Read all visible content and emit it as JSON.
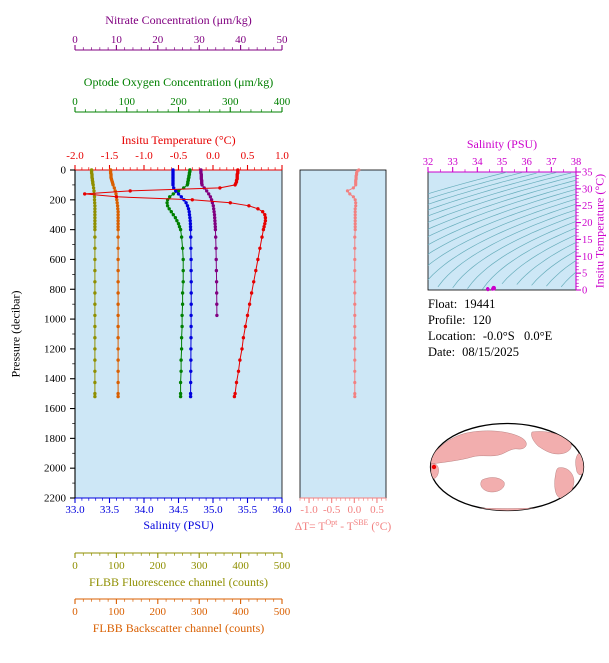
{
  "colors": {
    "plot_bg": "#cde7f6",
    "contour": "#68aebc",
    "map_land": "#f2aeae",
    "map_outline": "#000000",
    "float_marker": "#ee0000"
  },
  "axes": {
    "nitrate": {
      "title": "Nitrate Concentration (μm/kg)",
      "color": "#800080",
      "min": 0,
      "max": 50,
      "tick_labels": [
        "0",
        "10",
        "20",
        "30",
        "40",
        "50"
      ]
    },
    "oxygen": {
      "title": "Optode Oxygen Concentration (μm/kg)",
      "color": "#008000",
      "min": 0,
      "max": 400,
      "tick_labels": [
        "0",
        "100",
        "200",
        "300",
        "400"
      ]
    },
    "temperature": {
      "title": "Insitu Temperature (°C)",
      "color": "#e60000",
      "min": -2,
      "max": 1,
      "tick_labels": [
        "-2.0",
        "-1.5",
        "-1.0",
        "-0.5",
        "0.0",
        "0.5",
        "1.0"
      ]
    },
    "pressure": {
      "title": "Pressure (decibar)",
      "color": "#000000",
      "min": 0,
      "max": 2200,
      "tick_labels": [
        "0",
        "200",
        "400",
        "600",
        "800",
        "1000",
        "1200",
        "1400",
        "1600",
        "1800",
        "2000",
        "2200"
      ]
    },
    "salinity": {
      "title": "Salinity (PSU)",
      "color": "#0000dd",
      "min": 33,
      "max": 36,
      "tick_labels": [
        "33.0",
        "33.5",
        "34.0",
        "34.5",
        "35.0",
        "35.5",
        "36.0"
      ]
    },
    "fluorescence": {
      "title": "FLBB Fluorescence channel (counts)",
      "color": "#8f8f00",
      "min": 0,
      "max": 500,
      "tick_labels": [
        "0",
        "100",
        "200",
        "300",
        "400",
        "500"
      ]
    },
    "backscatter": {
      "title": "FLBB Backscatter channel (counts)",
      "color": "#d95f00",
      "min": 0,
      "max": 500,
      "tick_labels": [
        "0",
        "100",
        "200",
        "300",
        "400",
        "500"
      ]
    },
    "delta": {
      "color": "#f28080",
      "min": -1.2,
      "max": 0.7,
      "tick_labels": [
        "-1.0",
        "-0.5",
        "0.0",
        "0.5"
      ],
      "label_parts": {
        "p1": "ΔT= T",
        "sup1": "Opt",
        "p2": " - T",
        "sup2": "SBE",
        "p3": " (°C)"
      }
    },
    "ts_salinity": {
      "title": "Salinity (PSU)",
      "color": "#cc00cc",
      "min": 32,
      "max": 38,
      "tick_labels": [
        "32",
        "33",
        "34",
        "35",
        "36",
        "37",
        "38"
      ]
    },
    "ts_temperature": {
      "title": "Insitu Temperature (°C)",
      "color": "#cc00cc",
      "min": 0,
      "max": 35,
      "tick_labels": [
        "0",
        "5",
        "10",
        "15",
        "20",
        "25",
        "30",
        "35"
      ]
    }
  },
  "info": {
    "rows": [
      {
        "label": "Float:",
        "value": "19441"
      },
      {
        "label": "Profile:",
        "value": "120"
      },
      {
        "label": "Location:",
        "value": "-0.0°S   0.0°E"
      },
      {
        "label": "Date:",
        "value": "08/15/2025"
      }
    ]
  },
  "chart_data": [
    {
      "type": "line",
      "title": "Float vertical profiles vs pressure",
      "ylabel": "Pressure (decibar)",
      "ylim": [
        0,
        2200
      ],
      "pressure_db": [
        0,
        10,
        20,
        30,
        40,
        50,
        60,
        70,
        80,
        90,
        100,
        120,
        140,
        160,
        180,
        200,
        220,
        240,
        260,
        280,
        300,
        320,
        340,
        360,
        380,
        400,
        450,
        525,
        600,
        675,
        750,
        825,
        900,
        975,
        1050,
        1125,
        1200,
        1275,
        1350,
        1425,
        1500,
        1520
      ],
      "series": [
        {
          "name": "FLBB Fluorescence channel (counts)",
          "color": "#8f8f00",
          "range": [
            0,
            500
          ],
          "values": [
            40,
            40,
            40,
            41,
            41,
            41,
            42,
            42,
            43,
            43,
            44,
            45,
            46,
            46,
            47,
            47,
            47.5,
            48,
            48,
            48,
            48,
            48,
            48,
            48,
            48,
            48,
            48,
            48,
            48,
            48,
            48,
            48,
            48,
            48,
            48,
            48,
            48,
            48,
            48,
            48,
            48,
            48
          ]
        },
        {
          "name": "FLBB Backscatter channel (counts)",
          "color": "#d95f00",
          "range": [
            0,
            500
          ],
          "values": [
            86,
            86,
            86,
            87,
            87,
            87,
            88,
            89,
            90,
            91,
            92,
            95,
            97,
            99,
            100,
            101,
            102,
            103,
            103.5,
            104,
            104,
            104,
            104,
            104,
            104,
            104,
            104,
            104,
            104,
            104,
            104,
            104,
            104,
            104,
            104,
            104,
            104,
            104,
            104,
            104,
            104,
            104
          ]
        },
        {
          "name": "Nitrate Concentration (μm/kg)",
          "color": "#800080",
          "range": [
            0,
            50
          ],
          "values": [
            30.4,
            30.4,
            30.4,
            30.5,
            30.5,
            30.5,
            30.5,
            30.6,
            30.6,
            30.6,
            30.7,
            31.2,
            31.8,
            32.3,
            32.7,
            33.0,
            33.2,
            33.4,
            33.5,
            33.6,
            33.7,
            33.75,
            33.8,
            33.85,
            33.9,
            33.92,
            33.98,
            34.05,
            34.1,
            34.15,
            34.2,
            34.22,
            34.25,
            34.27,
            null,
            null,
            null,
            null,
            null,
            null,
            null,
            null
          ]
        },
        {
          "name": "Optode Oxygen Concentration (μm/kg)",
          "color": "#008000",
          "range": [
            0,
            400
          ],
          "values": [
            222,
            222,
            221,
            221,
            220,
            220,
            219,
            219,
            218,
            218,
            217,
            210,
            200,
            190,
            183,
            179,
            178,
            179,
            182,
            186,
            190,
            194,
            197,
            200,
            202,
            204,
            206,
            208,
            209,
            209,
            209,
            208,
            208,
            207,
            207,
            206,
            206,
            205,
            205,
            204,
            204,
            204
          ]
        },
        {
          "name": "Salinity (PSU)",
          "color": "#0000dd",
          "range": [
            33,
            36
          ],
          "values": [
            34.42,
            34.42,
            34.42,
            34.42,
            34.42,
            34.42,
            34.42,
            34.42,
            34.42,
            34.42,
            34.42,
            34.43,
            34.46,
            34.5,
            34.54,
            34.58,
            34.61,
            34.63,
            34.645,
            34.655,
            34.66,
            34.665,
            34.67,
            34.672,
            34.674,
            34.675,
            34.678,
            34.68,
            34.682,
            34.683,
            34.684,
            34.684,
            34.684,
            34.683,
            34.682,
            34.681,
            34.68,
            34.679,
            34.678,
            34.677,
            34.676,
            34.676
          ]
        },
        {
          "name": "Insitu Temperature (°C)",
          "color": "#e60000",
          "range": [
            -2,
            1
          ],
          "values": [
            0.36,
            0.36,
            0.36,
            0.35,
            0.35,
            0.35,
            0.35,
            0.34,
            0.34,
            0.33,
            0.32,
            0.1,
            -1.2,
            -1.86,
            -1.4,
            -0.3,
            0.25,
            0.52,
            0.65,
            0.72,
            0.75,
            0.76,
            0.76,
            0.75,
            0.74,
            0.73,
            0.71,
            0.68,
            0.65,
            0.62,
            0.59,
            0.56,
            0.53,
            0.5,
            0.47,
            0.44,
            0.42,
            0.39,
            0.37,
            0.34,
            0.32,
            0.31
          ]
        }
      ]
    },
    {
      "type": "line",
      "title": "ΔT= TOpt - TSBE (°C) vs pressure",
      "xlim": [
        -1.2,
        0.7
      ],
      "color": "#f28080",
      "pressure_db": [
        0,
        10,
        20,
        30,
        40,
        50,
        60,
        70,
        80,
        90,
        100,
        120,
        140,
        160,
        180,
        200,
        220,
        240,
        260,
        280,
        300,
        320,
        340,
        360,
        380,
        400,
        450,
        525,
        600,
        675,
        750,
        825,
        900,
        975,
        1050,
        1125,
        1200,
        1275,
        1350,
        1425,
        1500,
        1520
      ],
      "values": [
        0.1,
        0.06,
        0.05,
        0.05,
        0.04,
        0.04,
        0.04,
        0.03,
        0.03,
        0.03,
        0.03,
        -0.02,
        -0.15,
        -0.1,
        -0.02,
        0.02,
        0.03,
        0.03,
        0.02,
        0.02,
        0.02,
        0.02,
        0.02,
        0.02,
        0.02,
        0.02,
        0.01,
        0.01,
        0.01,
        0.01,
        0.01,
        0.01,
        0.01,
        0.01,
        0.01,
        0.01,
        0.01,
        0.01,
        0.01,
        0.01,
        0.01,
        0.01
      ]
    },
    {
      "type": "scatter",
      "title": "T-S diagram",
      "xlabel": "Salinity (PSU)",
      "ylabel": "Insitu Temperature (°C)",
      "xlim": [
        32,
        38
      ],
      "ylim": [
        0,
        35
      ],
      "color": "#cc00cc",
      "isopycnals": [
        20,
        20.5,
        21,
        21.5,
        22,
        22.5,
        23,
        23.5,
        24,
        24.5,
        25,
        25.5,
        26,
        26.5,
        27,
        27.5,
        28,
        28.5,
        29,
        29.5,
        30
      ],
      "points": [
        [
          34.42,
          0.36
        ],
        [
          34.42,
          0.36
        ],
        [
          34.42,
          0.36
        ],
        [
          34.42,
          0.35
        ],
        [
          34.42,
          0.35
        ],
        [
          34.42,
          0.35
        ],
        [
          34.42,
          0.35
        ],
        [
          34.42,
          0.34
        ],
        [
          34.42,
          0.34
        ],
        [
          34.42,
          0.33
        ],
        [
          34.42,
          0.32
        ],
        [
          34.43,
          0.1
        ],
        [
          34.61,
          0.25
        ],
        [
          34.63,
          0.52
        ],
        [
          34.645,
          0.65
        ],
        [
          34.655,
          0.72
        ],
        [
          34.66,
          0.75
        ],
        [
          34.665,
          0.76
        ],
        [
          34.67,
          0.76
        ],
        [
          34.672,
          0.75
        ],
        [
          34.674,
          0.74
        ],
        [
          34.675,
          0.73
        ],
        [
          34.678,
          0.71
        ],
        [
          34.68,
          0.68
        ],
        [
          34.682,
          0.65
        ],
        [
          34.683,
          0.62
        ],
        [
          34.684,
          0.59
        ],
        [
          34.684,
          0.56
        ],
        [
          34.684,
          0.53
        ],
        [
          34.683,
          0.5
        ],
        [
          34.682,
          0.47
        ],
        [
          34.681,
          0.44
        ],
        [
          34.68,
          0.42
        ],
        [
          34.679,
          0.39
        ],
        [
          34.678,
          0.37
        ],
        [
          34.677,
          0.34
        ],
        [
          34.676,
          0.32
        ],
        [
          34.676,
          0.31
        ]
      ]
    }
  ]
}
